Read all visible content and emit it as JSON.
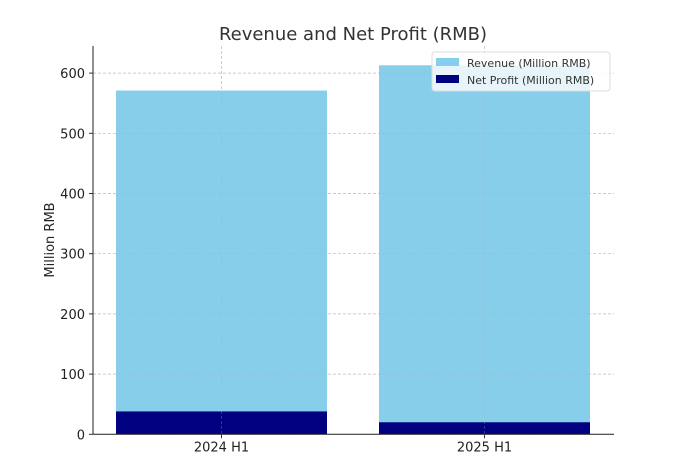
{
  "chart_data": {
    "type": "bar",
    "stacking": "overlay",
    "title": "Revenue and Net Profit (RMB)",
    "xlabel": "",
    "ylabel": "Million RMB",
    "categories": [
      "2024 H1",
      "2025 H1"
    ],
    "series": [
      {
        "name": "Revenue (Million RMB)",
        "values": [
          571,
          613
        ],
        "color": "#87CEEB"
      },
      {
        "name": "Net Profit (Million RMB)",
        "values": [
          38,
          20
        ],
        "color": "#000080"
      }
    ],
    "ylim": [
      0,
      645
    ],
    "yticks": [
      0,
      100,
      200,
      300,
      400,
      500,
      600
    ],
    "grid": true,
    "legend": "top-right"
  }
}
